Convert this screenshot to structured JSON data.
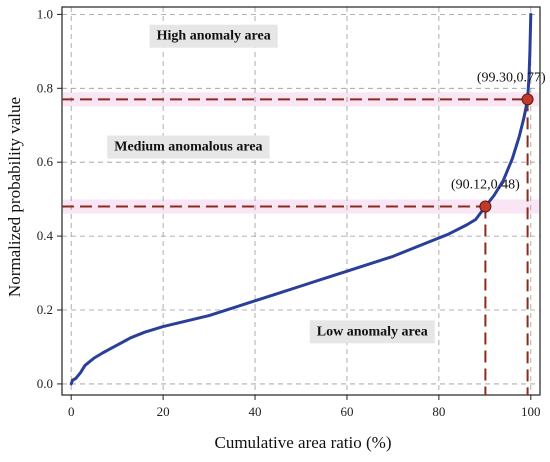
{
  "chart_data": {
    "type": "line",
    "xlabel": "Cumulative area ratio (%)",
    "ylabel": "Normalized probability value",
    "xlim": [
      -2,
      102
    ],
    "ylim": [
      -0.03,
      1.02
    ],
    "x_ticks": [
      0,
      20,
      40,
      60,
      80,
      100
    ],
    "y_ticks": [
      0.0,
      0.2,
      0.4,
      0.6,
      0.8,
      1.0
    ],
    "x_tick_labels": [
      "0",
      "20",
      "40",
      "60",
      "80",
      "100"
    ],
    "y_tick_labels": [
      "0.0",
      "0.2",
      "0.4",
      "0.6",
      "0.8",
      "1.0"
    ],
    "grid": true,
    "series": [
      {
        "color": "#2a3f9a",
        "points": [
          [
            0,
            0.0
          ],
          [
            0.3,
            0.01
          ],
          [
            1,
            0.015
          ],
          [
            2,
            0.03
          ],
          [
            3,
            0.05
          ],
          [
            4,
            0.06
          ],
          [
            5,
            0.07
          ],
          [
            7,
            0.085
          ],
          [
            10,
            0.105
          ],
          [
            13,
            0.125
          ],
          [
            16,
            0.14
          ],
          [
            20,
            0.155
          ],
          [
            25,
            0.17
          ],
          [
            30,
            0.185
          ],
          [
            35,
            0.205
          ],
          [
            40,
            0.225
          ],
          [
            45,
            0.245
          ],
          [
            50,
            0.265
          ],
          [
            55,
            0.285
          ],
          [
            60,
            0.305
          ],
          [
            65,
            0.325
          ],
          [
            70,
            0.345
          ],
          [
            74,
            0.365
          ],
          [
            78,
            0.385
          ],
          [
            82,
            0.405
          ],
          [
            86,
            0.43
          ],
          [
            88,
            0.445
          ],
          [
            90.12,
            0.48
          ],
          [
            92,
            0.51
          ],
          [
            94,
            0.55
          ],
          [
            96,
            0.61
          ],
          [
            97.5,
            0.67
          ],
          [
            98.5,
            0.72
          ],
          [
            99.3,
            0.77
          ],
          [
            99.6,
            0.83
          ],
          [
            99.8,
            0.9
          ],
          [
            100,
            1.0
          ]
        ]
      }
    ],
    "thresholds": [
      {
        "point": [
          90.12,
          0.48
        ],
        "label": "(90.12,0.48)"
      },
      {
        "point": [
          99.3,
          0.77
        ],
        "label": "(99.30,0.77)"
      }
    ],
    "regions": [
      {
        "label": "High anomaly area",
        "x": 31,
        "y": 0.945
      },
      {
        "label": "Medium anomalous area",
        "x": 25.5,
        "y": 0.645
      },
      {
        "label": "Low anomaly area",
        "x": 65.5,
        "y": 0.145
      }
    ],
    "colors": {
      "curve": "#2a3f9a",
      "threshold_line": "#8b2b1f",
      "marker": "#c0392b",
      "highlight": "#f7d4ec",
      "region_box": "#e6e6e6"
    }
  }
}
